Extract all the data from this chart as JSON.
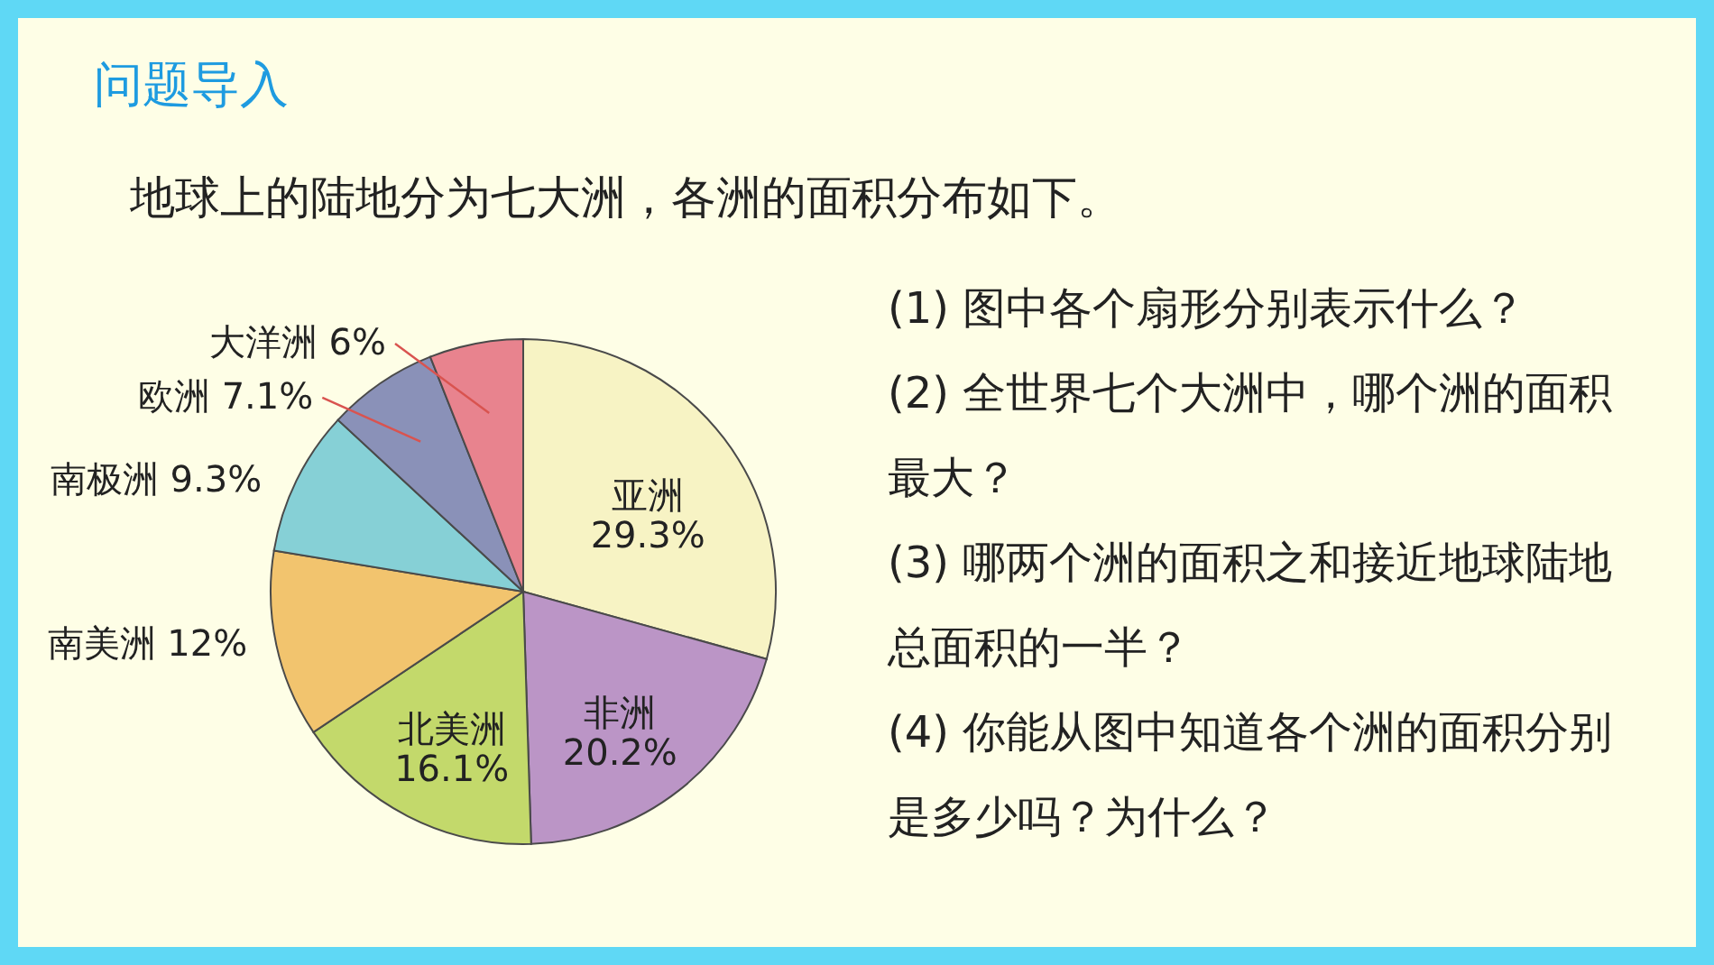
{
  "chart_data": {
    "type": "pie",
    "title": "问题导入",
    "subtitle": "地球上的陆地分为七大洲，各洲的面积分布如下。",
    "categories": [
      "亚洲",
      "非洲",
      "北美洲",
      "南美洲",
      "南极洲",
      "欧洲",
      "大洋洲"
    ],
    "values": [
      29.3,
      20.2,
      16.1,
      12,
      9.3,
      7.1,
      6
    ],
    "colors": [
      "#f7f3c4",
      "#bb95c6",
      "#c3d96b",
      "#f2c46e",
      "#86d0d6",
      "#8a91b8",
      "#e8838e"
    ],
    "value_labels": [
      "29.3%",
      "20.2%",
      "16.1%",
      "12%",
      "9.3%",
      "7.1%",
      "6%"
    ],
    "annotations": [
      "(1) 图中各个扇形分别表示什么？",
      "(2) 全世界七个大洲中，哪个洲的面积最大？",
      "(3) 哪两个洲的面积之和接近地球陆地总面积的一半？",
      "(4) 你能从图中知道各个洲的面积分别是多少吗？为什么？"
    ]
  }
}
